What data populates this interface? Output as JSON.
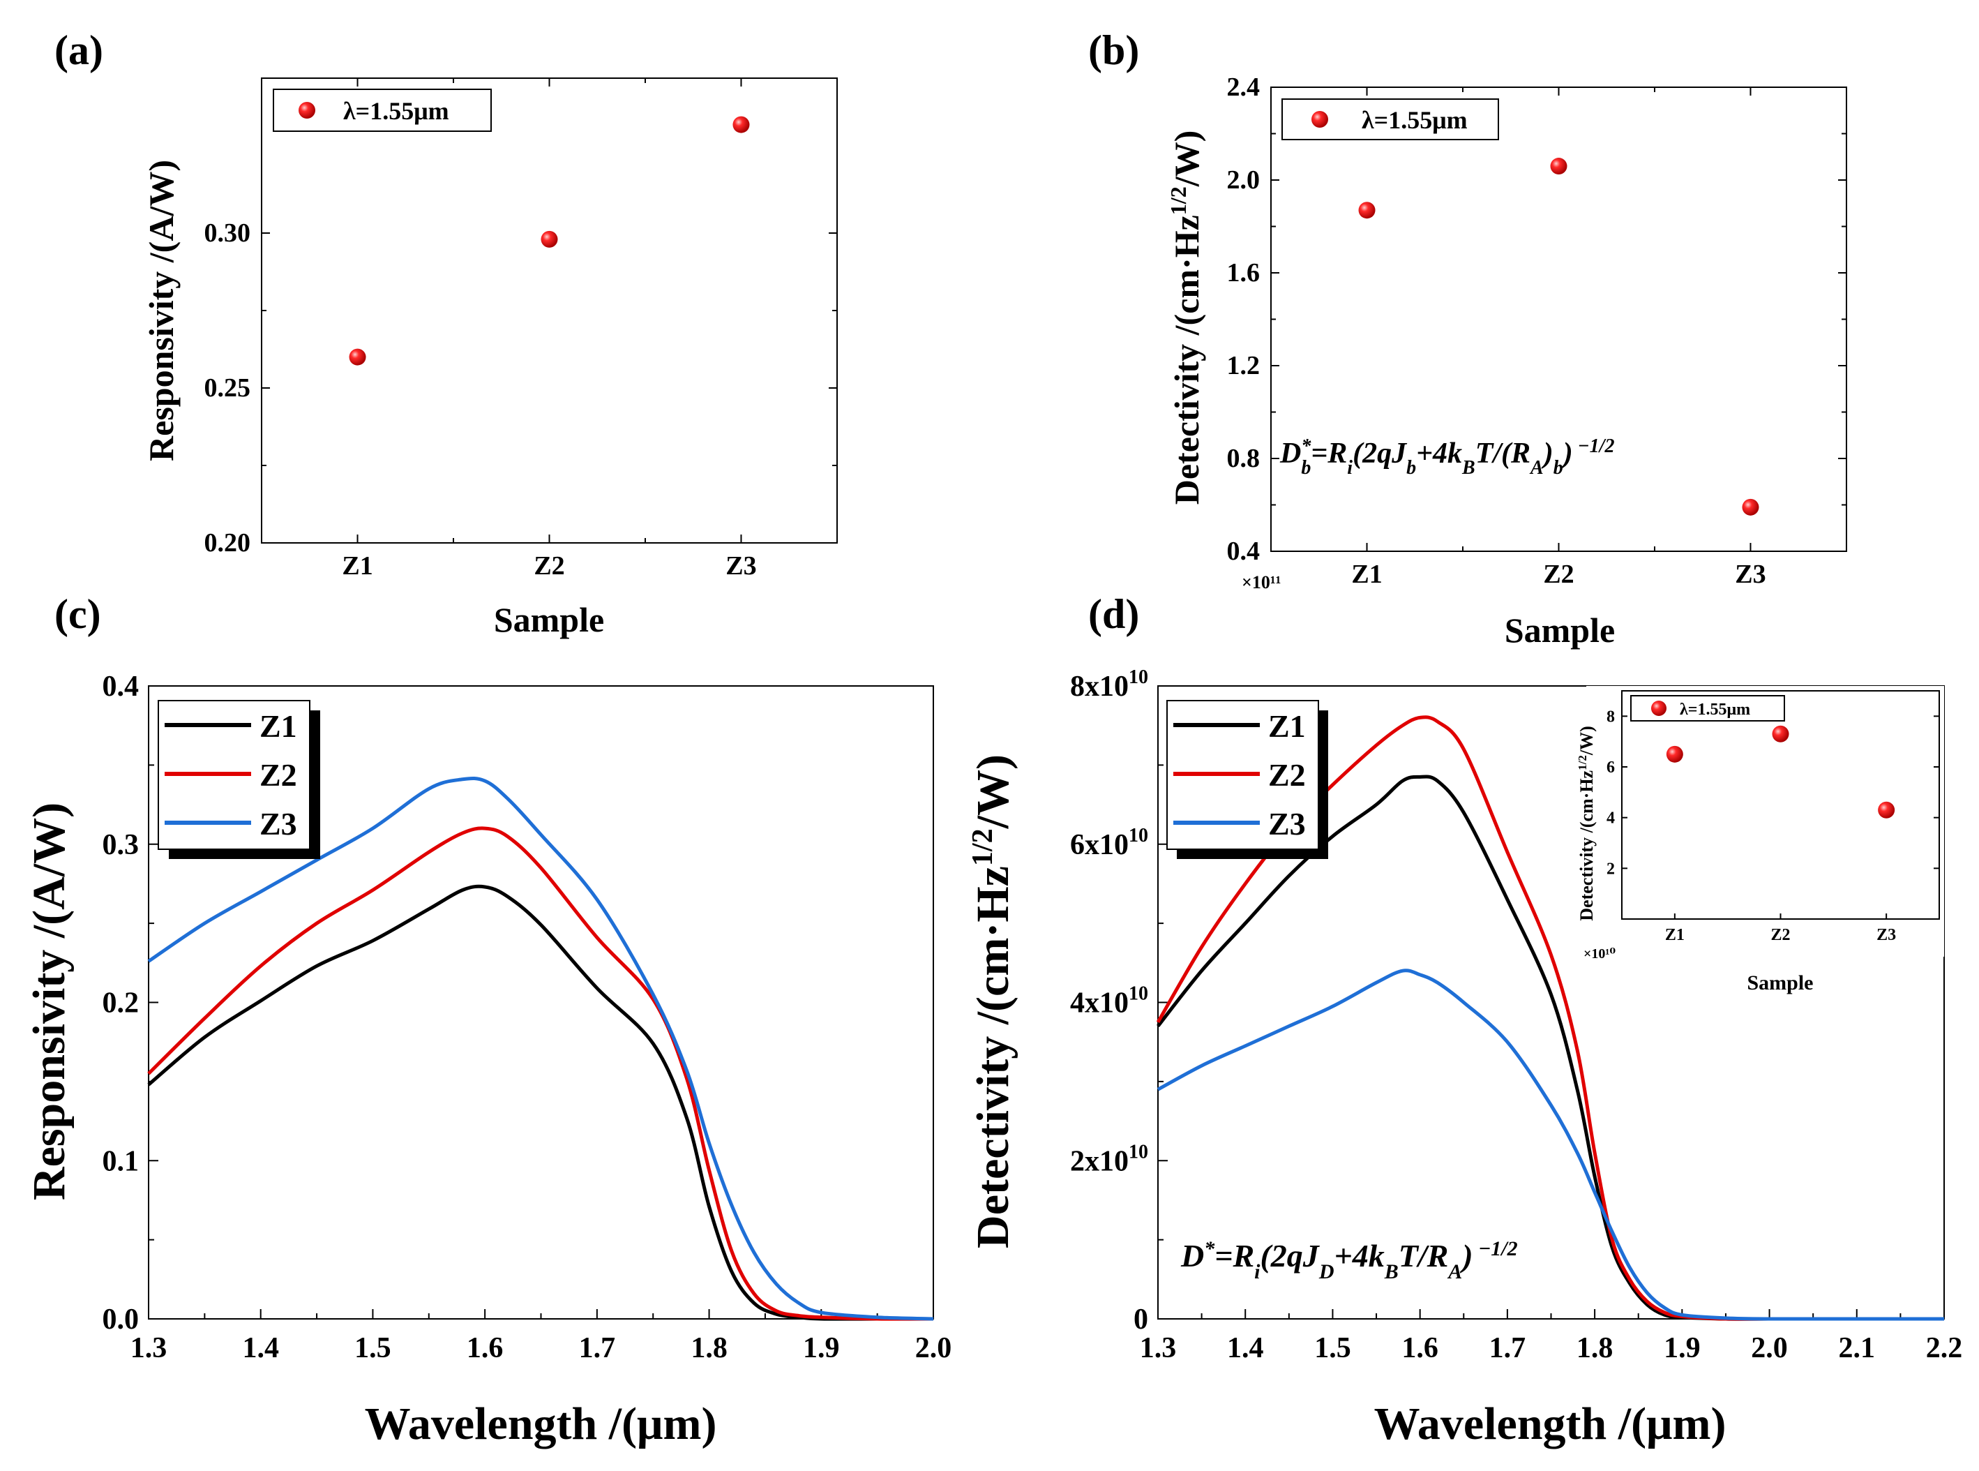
{
  "chart_data": [
    {
      "panel": "a",
      "panel_label": "(a)",
      "type": "scatter",
      "xlabel": "Sample",
      "ylabel": "Responsivity /(A/W)",
      "categories": [
        "Z1",
        "Z2",
        "Z3"
      ],
      "ylim": [
        0.2,
        0.35
      ],
      "yticks": [
        {
          "v": 0.2,
          "t": "0.20"
        },
        {
          "v": 0.25,
          "t": "0.25"
        },
        {
          "v": 0.3,
          "t": "0.30"
        }
      ],
      "series": [
        {
          "name": "λ=1.55μm",
          "values": [
            0.26,
            0.298,
            0.335
          ],
          "color": "#e00000"
        }
      ],
      "legend": {
        "label": "λ=1.55μm",
        "position": "top-left"
      }
    },
    {
      "panel": "b",
      "panel_label": "(b)",
      "type": "scatter",
      "xlabel": "Sample",
      "ylabel": "Detectivity /(cm·Hz^1/2/W)",
      "categories": [
        "Z1",
        "Z2",
        "Z3"
      ],
      "ylim": [
        0.4,
        2.4
      ],
      "yticks": [
        {
          "v": 0.4,
          "t": "0.4"
        },
        {
          "v": 0.8,
          "t": "0.8"
        },
        {
          "v": 1.2,
          "t": "1.2"
        },
        {
          "v": 1.6,
          "t": "1.6"
        },
        {
          "v": 2.0,
          "t": "2.0"
        },
        {
          "v": 2.4,
          "t": "2.4"
        }
      ],
      "multiplier": "×10¹¹",
      "series": [
        {
          "name": "λ=1.55μm",
          "values": [
            1.87,
            2.06,
            0.59
          ],
          "color": "#e00000"
        }
      ],
      "legend": {
        "label": "λ=1.55μm",
        "position": "top-left"
      },
      "annotation": "D_b^*=R_i(2qJ_b+4k_BT/(R_A)_b)^-1/2"
    },
    {
      "panel": "c",
      "panel_label": "(c)",
      "type": "line",
      "xlabel": "Wavelength /(μm)",
      "ylabel": "Responsivity /(A/W)",
      "xlim": [
        1.3,
        2.0
      ],
      "ylim": [
        0.0,
        0.4
      ],
      "xticks": [
        "1.3",
        "1.4",
        "1.5",
        "1.6",
        "1.7",
        "1.8",
        "1.9",
        "2.0"
      ],
      "yticks": [
        "0.0",
        "0.1",
        "0.2",
        "0.3",
        "0.4"
      ],
      "x": [
        1.3,
        1.35,
        1.4,
        1.45,
        1.5,
        1.55,
        1.58,
        1.6,
        1.62,
        1.65,
        1.7,
        1.75,
        1.78,
        1.8,
        1.82,
        1.84,
        1.86,
        1.88,
        1.9,
        1.95,
        2.0
      ],
      "series": [
        {
          "name": "Z1",
          "color": "#000000",
          "values": [
            0.148,
            0.178,
            0.201,
            0.223,
            0.239,
            0.259,
            0.271,
            0.273,
            0.267,
            0.249,
            0.209,
            0.174,
            0.127,
            0.071,
            0.03,
            0.01,
            0.003,
            0.001,
            0.0,
            0.0,
            0.0
          ]
        },
        {
          "name": "Z2",
          "color": "#e00000",
          "values": [
            0.155,
            0.19,
            0.223,
            0.25,
            0.271,
            0.295,
            0.307,
            0.31,
            0.305,
            0.285,
            0.241,
            0.202,
            0.152,
            0.094,
            0.043,
            0.016,
            0.005,
            0.002,
            0.001,
            0.0,
            0.0
          ]
        },
        {
          "name": "Z3",
          "color": "#1f6fd6",
          "values": [
            0.226,
            0.25,
            0.27,
            0.29,
            0.31,
            0.335,
            0.341,
            0.34,
            0.329,
            0.306,
            0.265,
            0.205,
            0.157,
            0.111,
            0.072,
            0.042,
            0.022,
            0.01,
            0.004,
            0.001,
            0.0
          ]
        }
      ],
      "legend": {
        "labels": [
          "Z1",
          "Z2",
          "Z3"
        ],
        "position": "top-left"
      }
    },
    {
      "panel": "d",
      "panel_label": "(d)",
      "type": "line",
      "xlabel": "Wavelength /(μm)",
      "ylabel": "Detectivity /(cm·Hz^1/2/W)",
      "xlim": [
        1.3,
        2.2
      ],
      "ylim": [
        0,
        80000000000.0
      ],
      "xticks": [
        "1.3",
        "1.4",
        "1.5",
        "1.6",
        "1.7",
        "1.8",
        "1.9",
        "2.0",
        "2.1",
        "2.2"
      ],
      "ytick_values": [
        0,
        20000000000.0,
        40000000000.0,
        60000000000.0,
        80000000000.0
      ],
      "yticks": [
        {
          "base": "0",
          "exp": ""
        },
        {
          "base": "2x10",
          "exp": "10"
        },
        {
          "base": "4x10",
          "exp": "10"
        },
        {
          "base": "6x10",
          "exp": "10"
        },
        {
          "base": "8x10",
          "exp": "10"
        }
      ],
      "x": [
        1.3,
        1.35,
        1.4,
        1.45,
        1.5,
        1.55,
        1.58,
        1.6,
        1.62,
        1.65,
        1.7,
        1.75,
        1.78,
        1.8,
        1.82,
        1.84,
        1.86,
        1.88,
        1.9,
        1.95,
        2.0,
        2.1,
        2.2
      ],
      "series": [
        {
          "name": "Z1",
          "color": "#000000",
          "values": [
            37000000000.0,
            44000000000.0,
            50000000000.0,
            56000000000.0,
            61000000000.0,
            65000000000.0,
            68000000000.0,
            68500000000.0,
            68000000000.0,
            64000000000.0,
            53000000000.0,
            41000000000.0,
            29000000000.0,
            18000000000.0,
            9000000000.0,
            4500000000.0,
            1800000000.0,
            500000000.0,
            200000000.0,
            0.0,
            0.0,
            0.0,
            0.0
          ]
        },
        {
          "name": "Z2",
          "color": "#e00000",
          "values": [
            37500000000.0,
            47000000000.0,
            55000000000.0,
            62000000000.0,
            67500000000.0,
            72500000000.0,
            75000000000.0,
            76000000000.0,
            75500000000.0,
            72000000000.0,
            59000000000.0,
            46000000000.0,
            34000000000.0,
            21000000000.0,
            10000000000.0,
            5000000000.0,
            2200000000.0,
            800000000.0,
            300000000.0,
            0.0,
            0.0,
            0.0,
            0.0
          ]
        },
        {
          "name": "Z3",
          "color": "#1f6fd6",
          "values": [
            29000000000.0,
            32000000000.0,
            34500000000.0,
            37000000000.0,
            39500000000.0,
            42500000000.0,
            44000000000.0,
            43500000000.0,
            42500000000.0,
            40000000000.0,
            35000000000.0,
            27000000000.0,
            21000000000.0,
            16000000000.0,
            11000000000.0,
            6500000000.0,
            3300000000.0,
            1400000000.0,
            500000000.0,
            100000000.0,
            0.0,
            0.0,
            0.0
          ]
        }
      ],
      "legend": {
        "labels": [
          "Z1",
          "Z2",
          "Z3"
        ],
        "position": "top-left"
      },
      "annotation": "D^*=R_i(2qJ_D+4k_BT/R_A)^-1/2",
      "inset": {
        "type": "scatter",
        "xlabel": "Sample",
        "ylabel": "Detectivity /(cm·Hz^1/2/W)",
        "categories": [
          "Z1",
          "Z2",
          "Z3"
        ],
        "ylim": [
          0,
          9
        ],
        "yticks": [
          "2",
          "4",
          "6",
          "8"
        ],
        "multiplier": "×10¹⁰",
        "series": [
          {
            "name": "λ=1.55μm",
            "values": [
              6.5,
              7.3,
              4.3
            ],
            "color": "#e00000"
          }
        ],
        "legend": {
          "label": "λ=1.55μm",
          "position": "top-left"
        }
      }
    }
  ]
}
